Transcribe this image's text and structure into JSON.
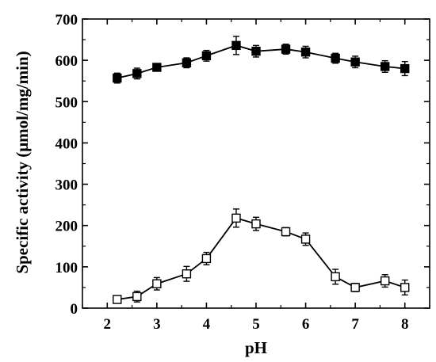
{
  "chart_data": {
    "type": "line",
    "xlabel": "pH",
    "ylabel": "Specific activity (μmol/mg/min)",
    "xlim": [
      1.5,
      8.5
    ],
    "ylim": [
      0,
      700
    ],
    "x_ticks": [
      "2",
      "3",
      "4",
      "5",
      "6",
      "7",
      "8"
    ],
    "y_ticks": [
      "0",
      "100",
      "200",
      "300",
      "400",
      "500",
      "600",
      "700"
    ],
    "grid": false,
    "legend": "none",
    "series": [
      {
        "marker": "filled-square",
        "color": "#000000",
        "points": [
          {
            "x": 2.2,
            "y": 557,
            "err": 12
          },
          {
            "x": 2.6,
            "y": 568,
            "err": 13
          },
          {
            "x": 3.0,
            "y": 583,
            "err": 8
          },
          {
            "x": 3.6,
            "y": 594,
            "err": 12
          },
          {
            "x": 4.0,
            "y": 611,
            "err": 13
          },
          {
            "x": 4.6,
            "y": 636,
            "err": 22
          },
          {
            "x": 5.0,
            "y": 622,
            "err": 14
          },
          {
            "x": 5.6,
            "y": 627,
            "err": 12
          },
          {
            "x": 6.0,
            "y": 620,
            "err": 14
          },
          {
            "x": 6.6,
            "y": 605,
            "err": 12
          },
          {
            "x": 7.0,
            "y": 596,
            "err": 14
          },
          {
            "x": 7.6,
            "y": 585,
            "err": 14
          },
          {
            "x": 8.0,
            "y": 580,
            "err": 17
          }
        ]
      },
      {
        "marker": "open-square",
        "color": "#000000",
        "points": [
          {
            "x": 2.2,
            "y": 21,
            "err": 8
          },
          {
            "x": 2.6,
            "y": 28,
            "err": 13
          },
          {
            "x": 3.0,
            "y": 59,
            "err": 15
          },
          {
            "x": 3.6,
            "y": 83,
            "err": 18
          },
          {
            "x": 4.0,
            "y": 120,
            "err": 15
          },
          {
            "x": 4.6,
            "y": 218,
            "err": 22
          },
          {
            "x": 5.0,
            "y": 204,
            "err": 16
          },
          {
            "x": 5.6,
            "y": 185,
            "err": 10
          },
          {
            "x": 6.0,
            "y": 167,
            "err": 15
          },
          {
            "x": 6.6,
            "y": 76,
            "err": 18
          },
          {
            "x": 7.0,
            "y": 50,
            "err": 10
          },
          {
            "x": 7.6,
            "y": 66,
            "err": 15
          },
          {
            "x": 8.0,
            "y": 50,
            "err": 18
          }
        ]
      }
    ]
  }
}
